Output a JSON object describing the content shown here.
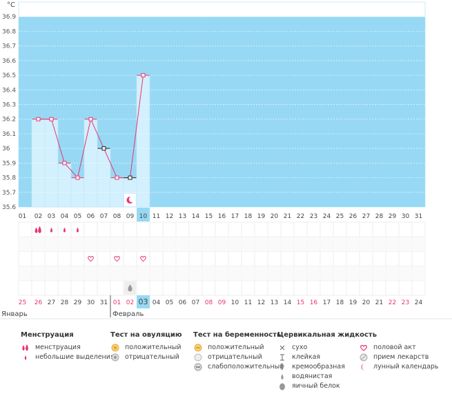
{
  "chart_data": {
    "type": "line",
    "unit_label": "°C",
    "y_ticks": [
      "36.9",
      "36.8",
      "36.7",
      "36.6",
      "36.5",
      "36.4",
      "36.3",
      "36.2",
      "36.1",
      "36",
      "35.9",
      "35.8",
      "35.7",
      "35.6"
    ],
    "ylim": [
      35.6,
      37.0
    ],
    "x_labels": [
      "01",
      "02",
      "03",
      "04",
      "05",
      "06",
      "07",
      "08",
      "09",
      "10",
      "11",
      "12",
      "13",
      "14",
      "15",
      "16",
      "17",
      "18",
      "19",
      "20",
      "21",
      "22",
      "23",
      "24",
      "25",
      "26",
      "27",
      "28",
      "29",
      "30",
      "31"
    ],
    "highlight_day_index": 9,
    "temperatures": [
      null,
      36.2,
      36.2,
      35.9,
      35.8,
      36.2,
      36.0,
      35.8,
      35.8,
      36.5
    ],
    "point_markers": [
      "",
      "pink",
      "pink",
      "pink",
      "pink",
      "pink",
      "black",
      "pink",
      "black",
      "pink"
    ],
    "moon_day_index": 8,
    "event_rows": {
      "menstruation": [
        null,
        "menstruation",
        "light",
        "light",
        "light"
      ],
      "intercourse_days": [
        5,
        7,
        9
      ],
      "fluid_egg_white_day": 8
    },
    "bottom_dates": [
      "25",
      "26",
      "27",
      "28",
      "29",
      "30",
      "31",
      "01",
      "02",
      "03",
      "04",
      "05",
      "06",
      "07",
      "08",
      "09",
      "10",
      "11",
      "12",
      "13",
      "14",
      "15",
      "16",
      "17",
      "18",
      "19",
      "20",
      "21",
      "22",
      "23",
      "24"
    ],
    "bottom_red_indices": [
      0,
      1,
      7,
      8,
      14,
      15,
      21,
      22,
      28,
      29
    ],
    "bottom_highlight_index": 9,
    "month_left": "Январь",
    "month_right": "Февраль",
    "colors": {
      "sky": "#97d9f4",
      "bar": "#d2f0fd",
      "line": "#e8336f",
      "red_text": "#e8336f",
      "highlight_cell": "#97d9f4"
    }
  },
  "legend": {
    "menstruation": {
      "title": "Менструация",
      "items": [
        {
          "icon": "drop-double-icon",
          "label": "менструация"
        },
        {
          "icon": "drop-small-icon",
          "label": "небольшие выделения"
        }
      ]
    },
    "ovulation_test": {
      "title": "Тест на овуляцию",
      "items": [
        {
          "icon": "test-positive-icon",
          "label": "положительный"
        },
        {
          "icon": "test-negative-icon",
          "label": "отрицательный"
        }
      ]
    },
    "pregnancy_test": {
      "title": "Тест на беременность",
      "items": [
        {
          "icon": "preg-positive-icon",
          "label": "положительный"
        },
        {
          "icon": "preg-negative-icon",
          "label": "отрицательный"
        },
        {
          "icon": "preg-weak-icon",
          "label": "слабоположительный"
        }
      ]
    },
    "cervical": {
      "title": "Цервикальная жидкость",
      "items": [
        {
          "icon": "dry-icon",
          "label": "сухо"
        },
        {
          "icon": "sticky-icon",
          "label": "клейкая"
        },
        {
          "icon": "creamy-icon",
          "label": "кремообразная"
        },
        {
          "icon": "watery-icon",
          "label": "водянистая"
        },
        {
          "icon": "egg-white-icon",
          "label": "яичный белок"
        }
      ]
    },
    "other": {
      "items": [
        {
          "icon": "heart-icon",
          "label": "половой акт"
        },
        {
          "icon": "pill-icon",
          "label": "прием лекарств"
        },
        {
          "icon": "moon-icon",
          "label": "лунный календарь"
        }
      ]
    }
  }
}
